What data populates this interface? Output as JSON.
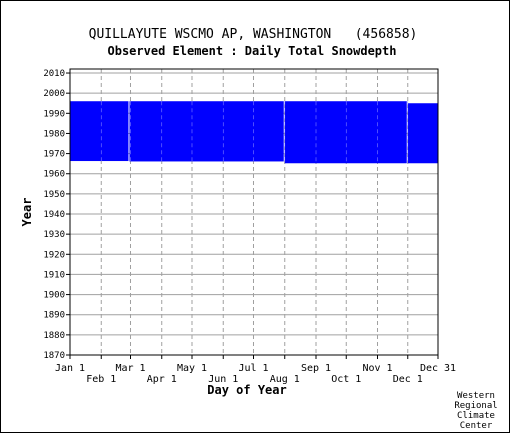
{
  "chart_data": {
    "type": "area",
    "title": "QUILLAYUTE WSCMO AP, WASHINGTON   (456858)",
    "subtitle": "Observed Element : Daily Total Snowdepth",
    "xlabel": "Day of Year",
    "ylabel": "Year",
    "xlim": [
      1,
      366
    ],
    "ylim": [
      1870,
      2012
    ],
    "yticks": [
      1870,
      1880,
      1890,
      1900,
      1910,
      1920,
      1930,
      1940,
      1950,
      1960,
      1970,
      1980,
      1990,
      2000,
      2010
    ],
    "xticks_upper": [
      {
        "label": "Jan 1",
        "day": 1
      },
      {
        "label": "Mar 1",
        "day": 61
      },
      {
        "label": "May 1",
        "day": 122
      },
      {
        "label": "Jul 1",
        "day": 183
      },
      {
        "label": "Sep 1",
        "day": 245
      },
      {
        "label": "Nov 1",
        "day": 306
      },
      {
        "label": "Dec 31",
        "day": 366
      }
    ],
    "xticks_lower": [
      {
        "label": "Feb 1",
        "day": 32
      },
      {
        "label": "Apr 1",
        "day": 92
      },
      {
        "label": "Jun 1",
        "day": 153
      },
      {
        "label": "Aug 1",
        "day": 214
      },
      {
        "label": "Oct 1",
        "day": 275
      },
      {
        "label": "Dec 1",
        "day": 336
      }
    ],
    "records": [
      {
        "day_start": 1,
        "day_end": 59,
        "year_start": 1966.3,
        "year_end": 1996.0
      },
      {
        "day_start": 60,
        "day_end": 213,
        "year_start": 1966.1,
        "year_end": 1996.0
      },
      {
        "day_start": 214,
        "day_end": 335,
        "year_start": 1965.2,
        "year_end": 1996.0
      },
      {
        "day_start": 336,
        "day_end": 366,
        "year_start": 1965.2,
        "year_end": 1995.0
      }
    ],
    "grid": true,
    "colors": {
      "data": "#0000ff",
      "grid": "#a0a0a0",
      "axis": "#000000"
    }
  },
  "credit": [
    "Western",
    "Regional",
    "Climate",
    "Center"
  ]
}
